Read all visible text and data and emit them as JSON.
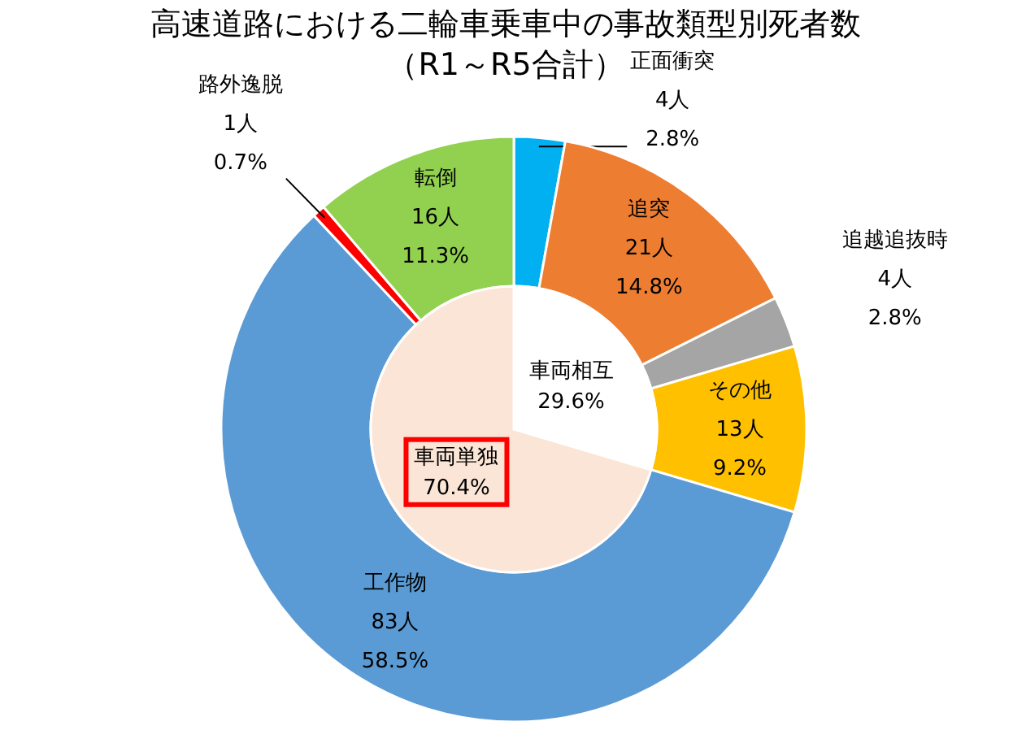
{
  "chart_data": [
    {
      "type": "donut",
      "title": "高速道路における二輪車乗車中の事故類型別死者数",
      "subtitle": "（R1～R5合計）",
      "categories": [
        "正面衝突",
        "追突",
        "追越追抜時",
        "その他",
        "工作物",
        "路外逸脱",
        "転倒"
      ],
      "values": [
        4,
        21,
        4,
        13,
        83,
        1,
        16
      ],
      "colors": [
        "#00b0f0",
        "#ed7d31",
        "#a5a5a5",
        "#ffc000",
        "#5b9bd5",
        "#ff0000",
        "#92d050"
      ],
      "value_labels": [
        "4人\n2.8%",
        "21人\n14.8%",
        "4人\n2.8%",
        "13人\n9.2%",
        "83人\n58.5%",
        "1人\n0.7%",
        "16人\n11.3%"
      ]
    },
    {
      "type": "pie",
      "categories": [
        "車両相互",
        "車両単独"
      ],
      "values": [
        29.6,
        70.4
      ],
      "colors": [
        "#ffffff",
        "#fbe5d6"
      ],
      "value_labels": [
        "29.6%",
        "70.4%"
      ]
    }
  ]
}
